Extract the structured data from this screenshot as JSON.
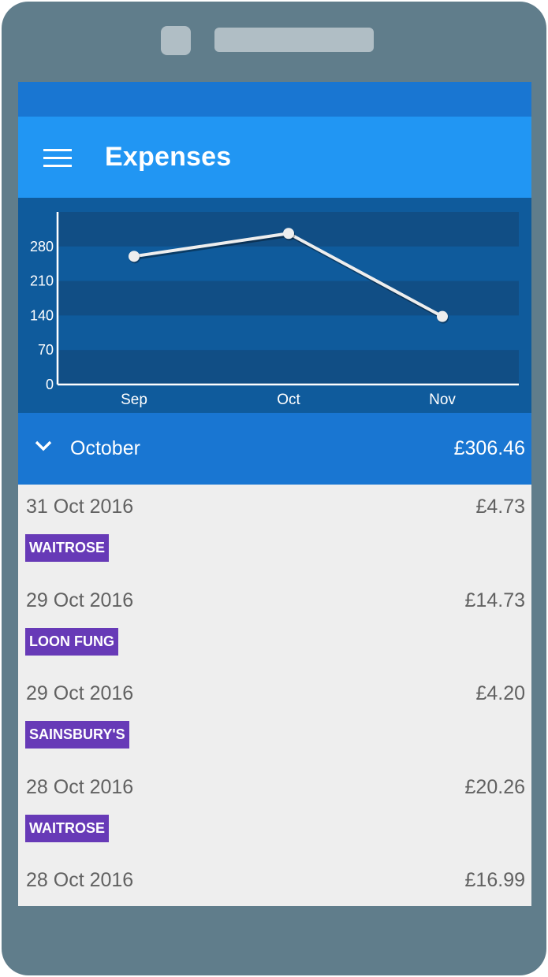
{
  "app_bar": {
    "title": "Expenses",
    "menu_icon": "hamburger-menu-icon"
  },
  "colors": {
    "status_bar": "#1976d2",
    "app_bar": "#2196f3",
    "chart_background": "#0f5b9c",
    "chart_band": "#114e85",
    "month_header": "#1976d2",
    "tag": "#673ab7",
    "list_background": "#eeeeee"
  },
  "chart_data": {
    "type": "line",
    "categories": [
      "Sep",
      "Oct",
      "Nov"
    ],
    "values": [
      260,
      306.46,
      138
    ],
    "y_ticks": [
      0,
      70,
      140,
      210,
      280
    ],
    "ylim": [
      0,
      350
    ],
    "title": "",
    "xlabel": "",
    "ylabel": "",
    "grid": "alternating horizontal bands"
  },
  "month_section": {
    "expand_icon": "chevron-down-icon",
    "name": "October",
    "total": "£306.46"
  },
  "expenses": [
    {
      "date": "31 Oct 2016",
      "amount": "£4.73",
      "tag": "WAITROSE"
    },
    {
      "date": "29 Oct 2016",
      "amount": "£14.73",
      "tag": "LOON FUNG"
    },
    {
      "date": "29 Oct 2016",
      "amount": "£4.20",
      "tag": "SAINSBURY'S"
    },
    {
      "date": "28 Oct 2016",
      "amount": "£20.26",
      "tag": "WAITROSE"
    },
    {
      "date": "28 Oct 2016",
      "amount": "£16.99",
      "tag": ""
    }
  ]
}
